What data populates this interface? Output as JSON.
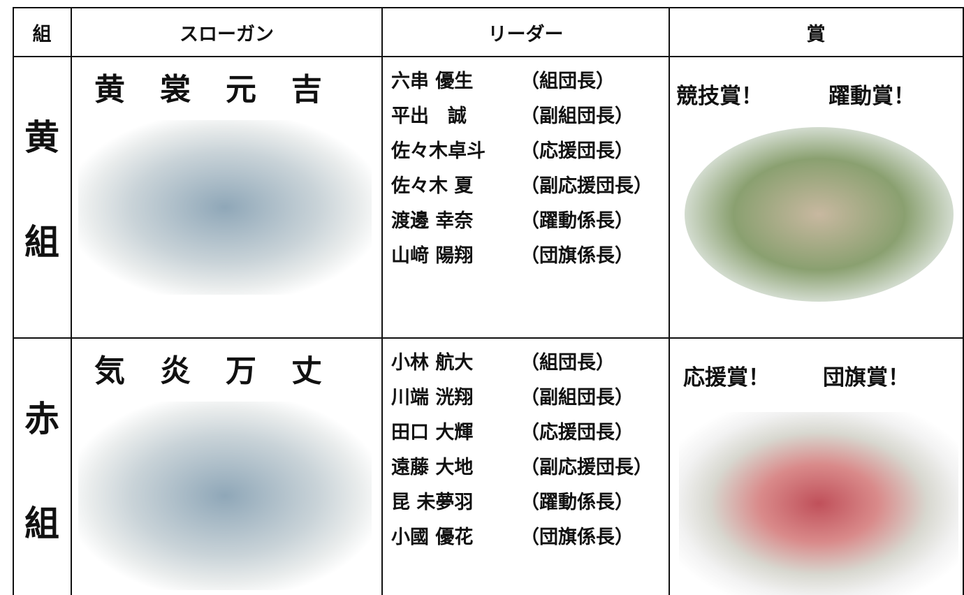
{
  "table": {
    "header": [
      "組",
      "スローガン",
      "リーダー",
      "賞"
    ],
    "rows": [
      {
        "group": [
          "黄",
          "組"
        ],
        "slogan": "黄裳元吉",
        "leaders": [
          [
            "六串 優生",
            "（組団長）"
          ],
          [
            "平出　誠",
            "（副組団長）"
          ],
          [
            "佐々木卓斗",
            "（応援団長）"
          ],
          [
            "佐々木 夏",
            "（副応援団長）"
          ],
          [
            "渡邊 幸奈",
            "（躍動係長）"
          ],
          [
            "山﨑 陽翔",
            "（団旗係長）"
          ]
        ],
        "awards": [
          "競技賞！",
          "躍動賞！"
        ]
      },
      {
        "group": [
          "赤",
          "組"
        ],
        "slogan": "気炎万丈",
        "leaders": [
          [
            "小林 航大",
            "（組団長）"
          ],
          [
            "川端 洸翔",
            "（副組団長）"
          ],
          [
            "田口 大輝",
            "（応援団長）"
          ],
          [
            "遠藤 大地",
            "（副応援団長）"
          ],
          [
            "昆 未夢羽",
            "（躍動係長）"
          ],
          [
            "小國 優花",
            "（団旗係長）"
          ]
        ],
        "awards": [
          "応援賞！",
          "団旗賞！"
        ]
      }
    ]
  }
}
